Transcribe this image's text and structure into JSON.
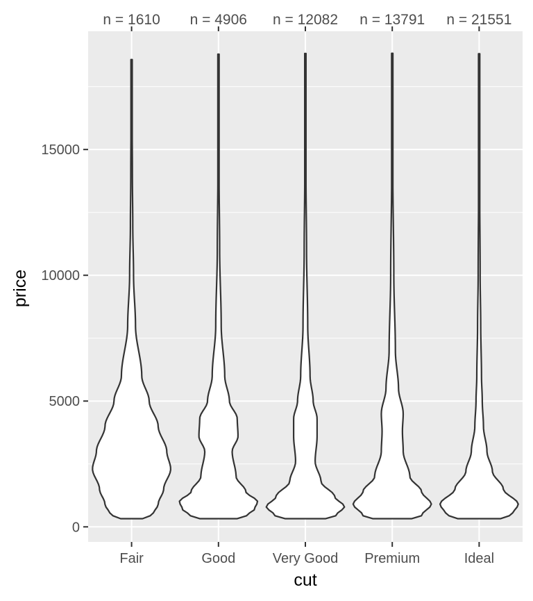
{
  "chart_data": {
    "type": "violin",
    "xlabel": "cut",
    "ylabel": "price",
    "categories": [
      "Fair",
      "Good",
      "Very Good",
      "Premium",
      "Ideal"
    ],
    "count_labels": [
      "n = 1610",
      "n = 4906",
      "n = 12082",
      "n = 13791",
      "n = 21551"
    ],
    "yticks": [
      0,
      5000,
      10000,
      15000
    ],
    "ytick_labels": [
      "0",
      "5000",
      "10000",
      "15000"
    ],
    "ylim": [
      -600,
      19700
    ],
    "grid": true,
    "legend": "none",
    "price_min": 326,
    "price_max": [
      18574,
      18788,
      18818,
      18823,
      18806
    ],
    "density_profile": [
      [
        [
          326,
          0.28
        ],
        [
          500,
          0.55
        ],
        [
          900,
          0.68
        ],
        [
          1500,
          0.82
        ],
        [
          2300,
          1.0
        ],
        [
          3000,
          0.9
        ],
        [
          4000,
          0.68
        ],
        [
          5000,
          0.45
        ],
        [
          6000,
          0.26
        ],
        [
          8000,
          0.1
        ],
        [
          10000,
          0.05
        ],
        [
          12000,
          0.03
        ],
        [
          14000,
          0.02
        ],
        [
          18574,
          0.0
        ]
      ],
      [
        [
          326,
          0.48
        ],
        [
          450,
          0.72
        ],
        [
          700,
          0.92
        ],
        [
          1000,
          1.0
        ],
        [
          1400,
          0.7
        ],
        [
          2000,
          0.45
        ],
        [
          3000,
          0.35
        ],
        [
          3600,
          0.5
        ],
        [
          4300,
          0.48
        ],
        [
          5000,
          0.28
        ],
        [
          6000,
          0.16
        ],
        [
          8000,
          0.07
        ],
        [
          11000,
          0.03
        ],
        [
          14000,
          0.015
        ],
        [
          18788,
          0.0
        ]
      ],
      [
        [
          326,
          0.52
        ],
        [
          450,
          0.78
        ],
        [
          800,
          1.0
        ],
        [
          1200,
          0.75
        ],
        [
          1800,
          0.4
        ],
        [
          2600,
          0.25
        ],
        [
          3600,
          0.3
        ],
        [
          4300,
          0.3
        ],
        [
          5000,
          0.2
        ],
        [
          6000,
          0.12
        ],
        [
          8000,
          0.06
        ],
        [
          11000,
          0.03
        ],
        [
          14000,
          0.015
        ],
        [
          18818,
          0.0
        ]
      ],
      [
        [
          326,
          0.5
        ],
        [
          450,
          0.75
        ],
        [
          900,
          1.0
        ],
        [
          1400,
          0.75
        ],
        [
          2000,
          0.45
        ],
        [
          3000,
          0.28
        ],
        [
          3800,
          0.26
        ],
        [
          4500,
          0.28
        ],
        [
          5500,
          0.16
        ],
        [
          7000,
          0.08
        ],
        [
          10000,
          0.04
        ],
        [
          14000,
          0.015
        ],
        [
          18823,
          0.0
        ]
      ],
      [
        [
          326,
          0.55
        ],
        [
          500,
          0.85
        ],
        [
          900,
          1.0
        ],
        [
          1500,
          0.62
        ],
        [
          2200,
          0.34
        ],
        [
          3000,
          0.2
        ],
        [
          4000,
          0.11
        ],
        [
          5000,
          0.08
        ],
        [
          6000,
          0.06
        ],
        [
          8000,
          0.04
        ],
        [
          10000,
          0.025
        ],
        [
          14000,
          0.012
        ],
        [
          18806,
          0.0
        ]
      ]
    ],
    "colors": {
      "panel": "#ebebeb",
      "grid": "#ffffff",
      "violin_fill": "#ffffff",
      "violin_stroke": "#333333",
      "tick": "#333333",
      "text": "#4d4d4d",
      "axis_title": "#000000"
    }
  }
}
